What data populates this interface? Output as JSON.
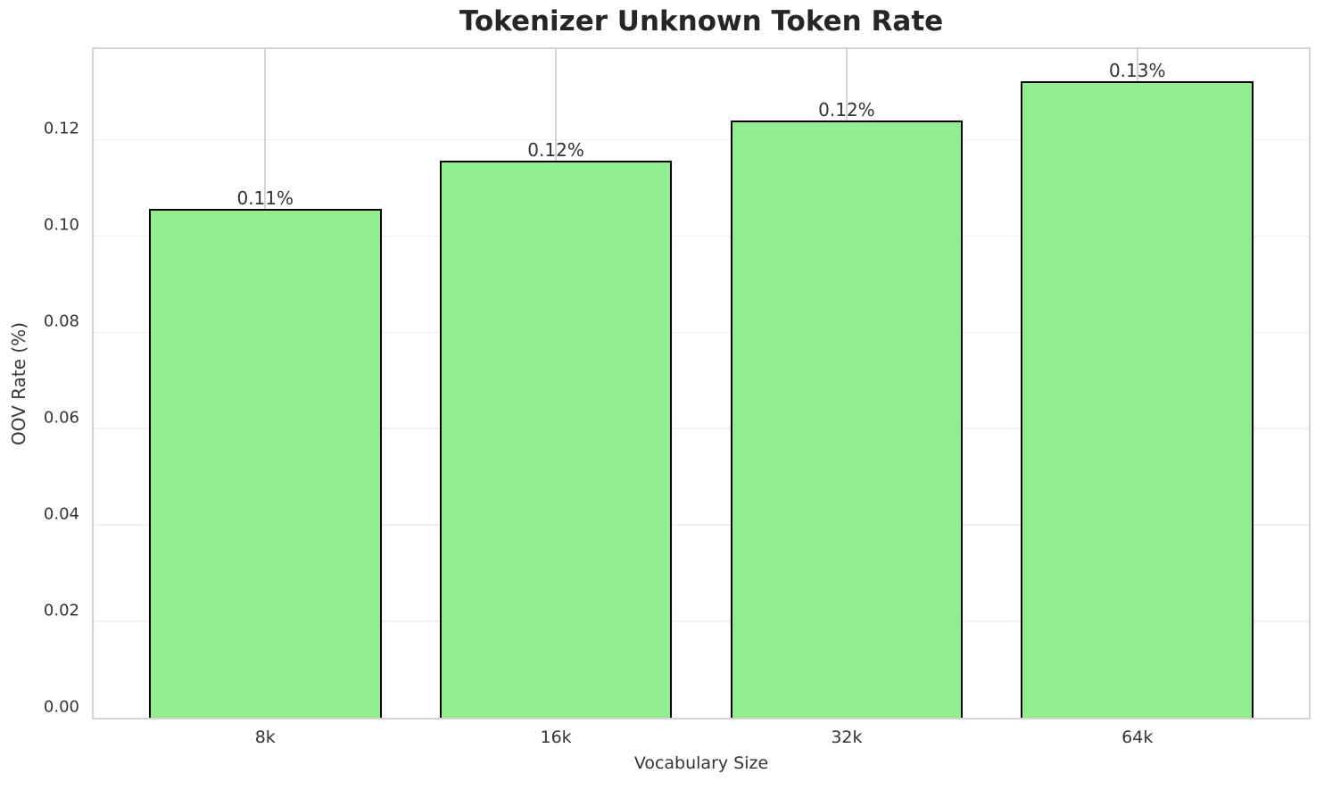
{
  "chart_data": {
    "type": "bar",
    "title": "Tokenizer Unknown Token Rate",
    "xlabel": "Vocabulary Size",
    "ylabel": "OOV Rate (%)",
    "categories": [
      "8k",
      "16k",
      "32k",
      "64k"
    ],
    "values": [
      0.1057,
      0.1156,
      0.124,
      0.1321
    ],
    "bar_labels": [
      "0.11%",
      "0.12%",
      "0.12%",
      "0.13%"
    ],
    "ytick_labels": [
      "0.00",
      "0.02",
      "0.04",
      "0.06",
      "0.08",
      "0.10",
      "0.12"
    ],
    "ytick_values": [
      0.0,
      0.02,
      0.04,
      0.06,
      0.08,
      0.1,
      0.12
    ],
    "ylim": [
      0,
      0.1388
    ],
    "grid": true,
    "legend_position": "none",
    "colors": {
      "bar_fill": "#90EE90",
      "bar_edge": "#000000",
      "hgrid": "#efefef",
      "vgrid": "#d4d4d4",
      "spine": "#d4d4d4",
      "text": "#333333",
      "title": "#262626"
    }
  }
}
